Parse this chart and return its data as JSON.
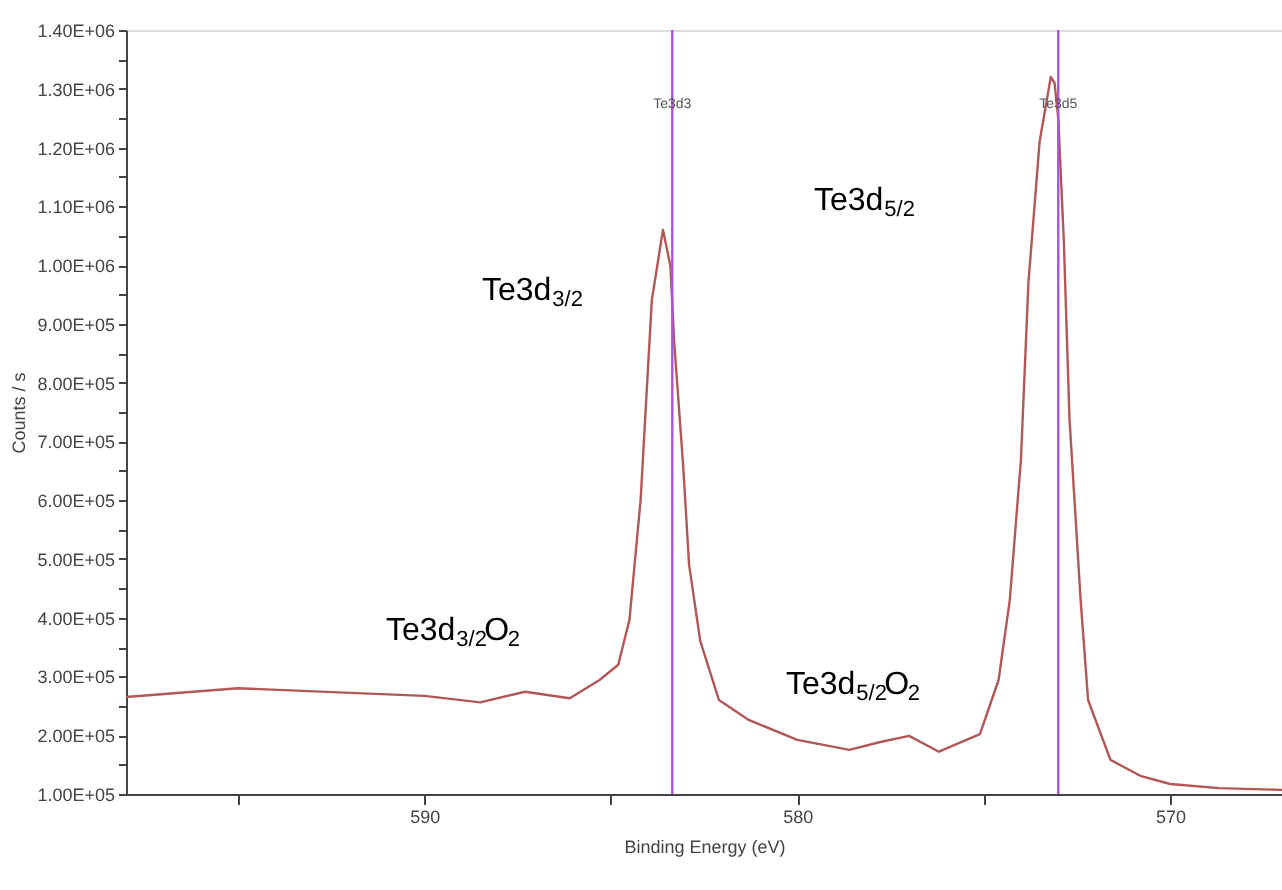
{
  "chart_data": {
    "type": "line",
    "xlabel": "Binding Energy (eV)",
    "ylabel": "Counts / s",
    "x": [
      598,
      595,
      592.3,
      590,
      588.5,
      587.3,
      586.1,
      585.3,
      584.8,
      584.5,
      584.2,
      583.9,
      583.6,
      583.4,
      583.3,
      583.06,
      582.9,
      582.6,
      582.1,
      581.3,
      580,
      578.6,
      577.8,
      577,
      576.2,
      575.1,
      574.6,
      574.3,
      574,
      573.8,
      573.5,
      573.2,
      573.1,
      573,
      572.85,
      572.7,
      572.4,
      572.2,
      571.6,
      570.8,
      570,
      568.7,
      567
    ],
    "series": [
      {
        "color": "#b05858",
        "values": [
          265000,
          280000,
          273000,
          267000,
          256000,
          274000,
          263000,
          294000,
          320000,
          396000,
          600000,
          940000,
          1060000,
          998000,
          870000,
          660000,
          490000,
          360000,
          260000,
          226000,
          192000,
          175000,
          188000,
          199000,
          172000,
          202000,
          294000,
          430000,
          670000,
          970000,
          1210000,
          1320000,
          1310000,
          1250000,
          1040000,
          740000,
          430000,
          260000,
          158000,
          131000,
          117000,
          110000,
          107000
        ]
      }
    ],
    "xlim": [
      598,
      567
    ],
    "xticks": [
      {
        "value": 595,
        "label": null
      },
      590,
      {
        "value": 585,
        "label": null
      },
      580,
      {
        "value": 575,
        "label": null
      },
      570
    ],
    "ylim": [
      100000,
      1400000
    ],
    "yticks": [
      {
        "value": 100000,
        "label": "1.00E+05"
      },
      {
        "value": 150000,
        "label": null
      },
      {
        "value": 200000,
        "label": "2.00E+05"
      },
      {
        "value": 250000,
        "label": null
      },
      {
        "value": 300000,
        "label": "3.00E+05"
      },
      {
        "value": 350000,
        "label": null
      },
      {
        "value": 400000,
        "label": "4.00E+05"
      },
      {
        "value": 450000,
        "label": null
      },
      {
        "value": 500000,
        "label": "5.00E+05"
      },
      {
        "value": 550000,
        "label": null
      },
      {
        "value": 600000,
        "label": "6.00E+05"
      },
      {
        "value": 650000,
        "label": null
      },
      {
        "value": 700000,
        "label": "7.00E+05"
      },
      {
        "value": 750000,
        "label": null
      },
      {
        "value": 800000,
        "label": "8.00E+05"
      },
      {
        "value": 850000,
        "label": null
      },
      {
        "value": 900000,
        "label": "9.00E+05"
      },
      {
        "value": 950000,
        "label": null
      },
      {
        "value": 1000000,
        "label": "1.00E+06"
      },
      {
        "value": 1050000,
        "label": null
      },
      {
        "value": 1100000,
        "label": "1.10E+06"
      },
      {
        "value": 1150000,
        "label": null
      },
      {
        "value": 1200000,
        "label": "1.20E+06"
      },
      {
        "value": 1250000,
        "label": null
      },
      {
        "value": 1300000,
        "label": "1.30E+06"
      },
      {
        "value": 1350000,
        "label": null
      },
      {
        "value": 1400000,
        "label": "1.40E+06"
      }
    ],
    "ref_lines": [
      {
        "axis": "x",
        "value": 583.35,
        "label": "Te3d3",
        "color": "#a855d6"
      },
      {
        "axis": "x",
        "value": 573.0,
        "label": "Te3d5",
        "color": "#a855d6"
      }
    ],
    "annotations": [
      "Te3d$_{3/2}$",
      "Te3d$_{3/2}$O$_{2}$",
      "Te3d$_{5/2}$",
      "Te3d$_{5/2}$O$_{2}$"
    ],
    "grid": false,
    "marker": "none",
    "line_style": "solid"
  }
}
